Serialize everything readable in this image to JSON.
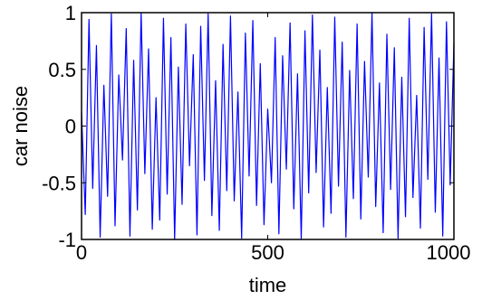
{
  "chart_data": {
    "type": "line",
    "title": "",
    "xlabel": "time",
    "ylabel": "car noise",
    "xlim": [
      0,
      1000
    ],
    "ylim": [
      -1,
      1
    ],
    "x_ticks": [
      0,
      500,
      1000
    ],
    "x_tick_labels": [
      "0",
      "500",
      "1000"
    ],
    "y_ticks": [
      -1,
      -0.5,
      0,
      0.5,
      1
    ],
    "y_tick_labels": [
      "-1",
      "-0.5",
      "0",
      "0.5",
      "1"
    ],
    "grid": false,
    "legend": "none",
    "series": [
      {
        "color": "#0000ff",
        "x": [
          0,
          10,
          20,
          30,
          40,
          50,
          60,
          70,
          80,
          90,
          100,
          110,
          120,
          130,
          140,
          150,
          160,
          170,
          180,
          190,
          200,
          210,
          220,
          230,
          240,
          250,
          260,
          270,
          280,
          290,
          300,
          310,
          320,
          330,
          340,
          350,
          360,
          370,
          380,
          390,
          400,
          410,
          420,
          430,
          440,
          450,
          460,
          470,
          480,
          490,
          500,
          510,
          520,
          530,
          540,
          550,
          560,
          570,
          580,
          590,
          600,
          610,
          620,
          630,
          640,
          650,
          660,
          670,
          680,
          690,
          700,
          710,
          720,
          730,
          740,
          750,
          760,
          770,
          780,
          790,
          800,
          810,
          820,
          830,
          840,
          850,
          860,
          870,
          880,
          890,
          900,
          910,
          920,
          930,
          940,
          950,
          960,
          970,
          980,
          990,
          1000
        ],
        "y": [
          0.12,
          -0.78,
          0.94,
          -0.55,
          0.71,
          -0.98,
          0.36,
          -0.62,
          0.99,
          -0.88,
          0.45,
          -0.3,
          0.86,
          -0.97,
          0.58,
          -0.74,
          1.0,
          -0.42,
          0.68,
          -0.91,
          0.25,
          -0.83,
          0.95,
          -0.6,
          0.78,
          -1.0,
          0.52,
          -0.69,
          0.9,
          -0.35,
          0.63,
          -0.96,
          0.88,
          -0.48,
          0.99,
          -0.79,
          0.4,
          -0.92,
          0.72,
          -0.57,
          0.97,
          -0.66,
          0.3,
          -0.99,
          0.82,
          -0.44,
          0.93,
          -0.7,
          0.55,
          -0.87,
          0.15,
          -0.5,
          0.78,
          -0.95,
          0.62,
          -0.38,
          0.91,
          -0.73,
          0.46,
          -1.0,
          0.84,
          -0.59,
          0.98,
          -0.41,
          0.67,
          -0.89,
          0.34,
          -0.77,
          0.96,
          -0.53,
          0.74,
          -0.98,
          0.49,
          -0.64,
          0.9,
          -0.82,
          0.57,
          -0.45,
          1.0,
          -0.71,
          0.38,
          -0.94,
          0.81,
          -0.56,
          0.69,
          -0.99,
          0.43,
          -0.8,
          0.95,
          -0.63,
          0.27,
          -0.9,
          0.87,
          -0.47,
          0.99,
          -0.76,
          0.6,
          -0.97,
          0.92,
          -0.52,
          0.73
        ]
      }
    ]
  }
}
